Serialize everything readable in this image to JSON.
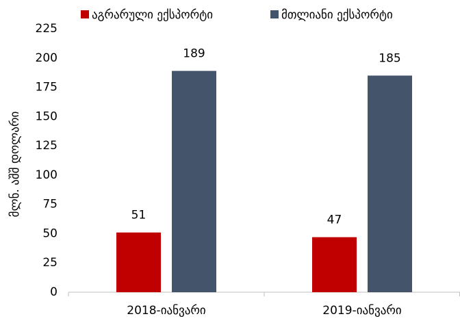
{
  "chart_data": {
    "type": "bar",
    "categories": [
      "2018-იანვარი",
      "2019-იანვარი"
    ],
    "series": [
      {
        "name": "აგრარული ექსპორტი",
        "color": "#c00000",
        "values": [
          51,
          47
        ]
      },
      {
        "name": "მთლიანი ექსპორტი",
        "color": "#44546a",
        "values": [
          189,
          185
        ]
      }
    ],
    "ylabel": "მლნ. აშშ დოლარი",
    "ylim": [
      0,
      225
    ],
    "yticks": [
      0,
      25,
      50,
      75,
      100,
      125,
      150,
      175,
      200,
      225
    ],
    "grid": false,
    "legend": "top"
  }
}
